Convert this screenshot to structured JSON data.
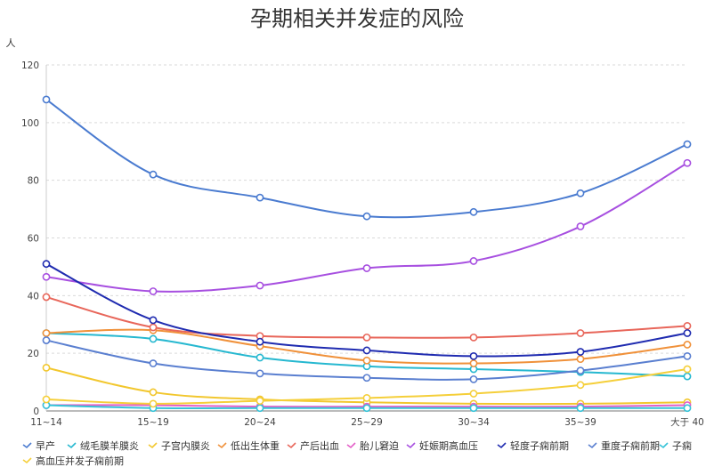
{
  "chart_data": {
    "type": "line",
    "title": "孕期相关并发症的风险",
    "y_unit": "人",
    "ylim": [
      0,
      120
    ],
    "yticks": [
      0,
      20,
      40,
      60,
      80,
      100,
      120
    ],
    "grid": "horizontal dashed",
    "legend_position": "bottom",
    "categories": [
      "11~14",
      "15~19",
      "20~24",
      "25~29",
      "30~34",
      "35~39",
      "大于 40"
    ],
    "series": [
      {
        "name": "早产",
        "color": "#4a7bd0",
        "values": [
          108,
          82,
          74,
          67.5,
          69,
          75.5,
          92.5
        ]
      },
      {
        "name": "绒毛膜羊膜炎",
        "color": "#26b8d0",
        "values": [
          27,
          25,
          18.5,
          15.5,
          14.5,
          13.5,
          12
        ]
      },
      {
        "name": "子宫内膜炎",
        "color": "#f2c72e",
        "values": [
          15,
          6.5,
          4,
          3,
          2.5,
          2.5,
          3
        ]
      },
      {
        "name": "低出生体重",
        "color": "#f0913a",
        "values": [
          27,
          28,
          22.5,
          17.5,
          16.5,
          18,
          23
        ]
      },
      {
        "name": "产后出血",
        "color": "#e8665a",
        "values": [
          39.5,
          29,
          26,
          25.5,
          25.5,
          27,
          29.5
        ]
      },
      {
        "name": "胎儿窘迫",
        "color": "#e35fc8",
        "values": [
          2,
          2,
          1.5,
          1.5,
          1.5,
          1.5,
          2
        ]
      },
      {
        "name": "妊娠期高血压",
        "color": "#a74fe0",
        "values": [
          46.5,
          41.5,
          43.5,
          49.5,
          52,
          64,
          86
        ]
      },
      {
        "name": "轻度子痫前期",
        "color": "#1f2bb0",
        "values": [
          51,
          31.5,
          24,
          21,
          19,
          20.5,
          27
        ]
      },
      {
        "name": "重度子痫前期",
        "color": "#5a7fd0",
        "values": [
          24.5,
          16.5,
          13,
          11.5,
          11,
          14,
          19
        ]
      },
      {
        "name": "子痫",
        "color": "#35c3d8",
        "values": [
          2,
          1,
          1,
          1,
          1,
          1,
          1
        ]
      },
      {
        "name": "高血压并发子痫前期",
        "color": "#f5cf3a",
        "values": [
          4,
          2.5,
          3.5,
          4.5,
          6,
          9,
          14.5
        ]
      }
    ]
  }
}
